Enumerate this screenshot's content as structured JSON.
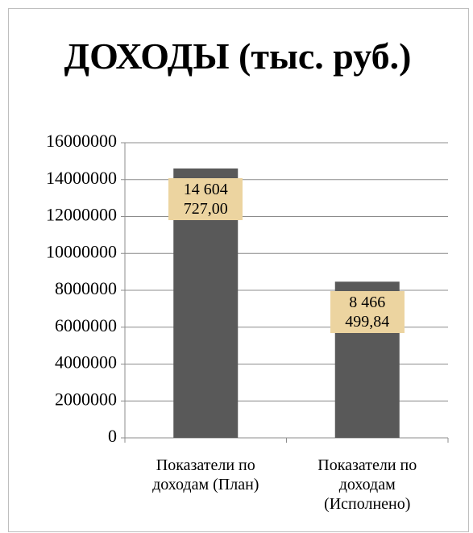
{
  "chart_data": {
    "type": "bar",
    "title": "ДОХОДЫ (тыс. руб.)",
    "categories": [
      "Показатели по доходам (План)",
      "Показатели по доходам (Исполнено)"
    ],
    "values": [
      14604727.0,
      8466499.84
    ],
    "value_labels": [
      "14 604 727,00",
      "8 466 499,84"
    ],
    "color": "#595959",
    "ylim": [
      0,
      16000000
    ],
    "yticks": [
      0,
      2000000,
      4000000,
      6000000,
      8000000,
      10000000,
      12000000,
      14000000,
      16000000
    ],
    "grid": true
  }
}
